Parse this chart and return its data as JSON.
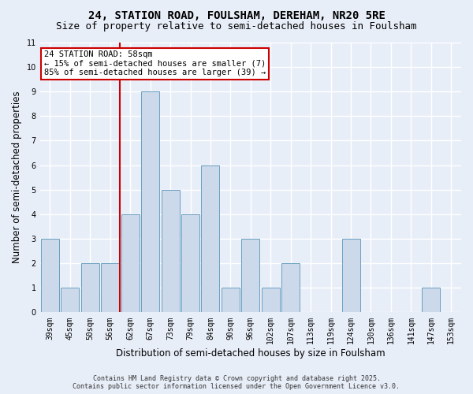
{
  "title_line1": "24, STATION ROAD, FOULSHAM, DEREHAM, NR20 5RE",
  "title_line2": "Size of property relative to semi-detached houses in Foulsham",
  "xlabel": "Distribution of semi-detached houses by size in Foulsham",
  "ylabel": "Number of semi-detached properties",
  "categories": [
    "39sqm",
    "45sqm",
    "50sqm",
    "56sqm",
    "62sqm",
    "67sqm",
    "73sqm",
    "79sqm",
    "84sqm",
    "90sqm",
    "96sqm",
    "102sqm",
    "107sqm",
    "113sqm",
    "119sqm",
    "124sqm",
    "130sqm",
    "136sqm",
    "141sqm",
    "147sqm",
    "153sqm"
  ],
  "values": [
    3,
    1,
    2,
    2,
    4,
    9,
    5,
    4,
    6,
    1,
    3,
    1,
    2,
    0,
    0,
    3,
    0,
    0,
    0,
    1,
    0
  ],
  "bar_color": "#ccd9ea",
  "bar_edge_color": "#6a9fc0",
  "vline_index": 3.5,
  "vline_color": "#cc0000",
  "annotation_text": "24 STATION ROAD: 58sqm\n← 15% of semi-detached houses are smaller (7)\n85% of semi-detached houses are larger (39) →",
  "annotation_box_facecolor": "#ffffff",
  "annotation_box_edgecolor": "#cc0000",
  "ylim": [
    0,
    11
  ],
  "yticks": [
    0,
    1,
    2,
    3,
    4,
    5,
    6,
    7,
    8,
    9,
    10,
    11
  ],
  "footer_text": "Contains HM Land Registry data © Crown copyright and database right 2025.\nContains public sector information licensed under the Open Government Licence v3.0.",
  "background_color": "#e8eef8",
  "plot_bg_color": "#e8eef8",
  "grid_color": "#ffffff",
  "title_fontsize": 10,
  "subtitle_fontsize": 9,
  "tick_fontsize": 7,
  "ylabel_fontsize": 8.5,
  "xlabel_fontsize": 8.5,
  "annotation_fontsize": 7.5,
  "footer_fontsize": 6
}
